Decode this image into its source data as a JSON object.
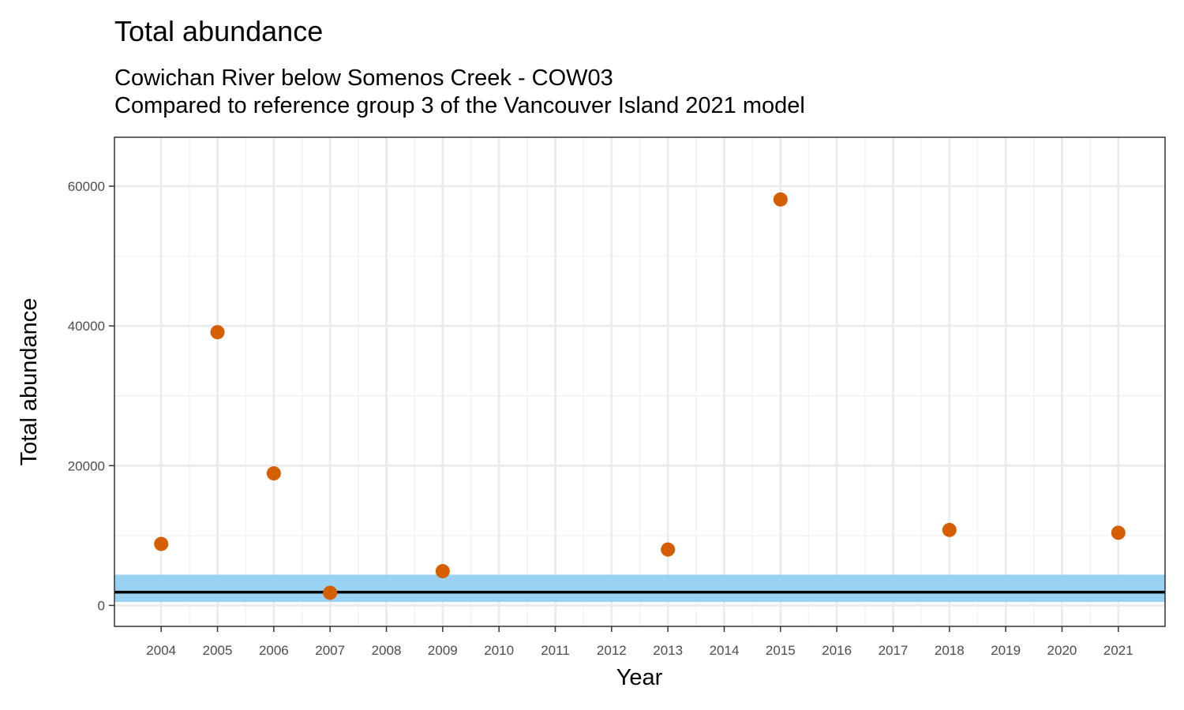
{
  "chart_data": {
    "type": "scatter",
    "title": "Total abundance",
    "subtitle": [
      "Cowichan River below Somenos Creek - COW03",
      "Compared to reference group 3 of the Vancouver Island 2021 model"
    ],
    "xlabel": "Year",
    "ylabel": "Total abundance",
    "x_ticks": [
      "2004",
      "2005",
      "2006",
      "2007",
      "2008",
      "2009",
      "2010",
      "2011",
      "2012",
      "2013",
      "2014",
      "2015",
      "2016",
      "2017",
      "2018",
      "2019",
      "2020",
      "2021"
    ],
    "y_ticks": [
      0,
      20000,
      40000,
      60000
    ],
    "xlim": [
      2003.17,
      2021.83
    ],
    "ylim": [
      -3000,
      67000
    ],
    "grid": true,
    "series": [
      {
        "points": [
          {
            "x": 2004,
            "y": 8800
          },
          {
            "x": 2005,
            "y": 39100
          },
          {
            "x": 2006,
            "y": 18900
          },
          {
            "x": 2007,
            "y": 1800
          },
          {
            "x": 2009,
            "y": 4900
          },
          {
            "x": 2013,
            "y": 8000
          },
          {
            "x": 2015,
            "y": 58100
          },
          {
            "x": 2018,
            "y": 10800
          },
          {
            "x": 2021,
            "y": 10400
          }
        ]
      }
    ],
    "reference_band": {
      "low": 500,
      "high": 4400
    },
    "reference_line": 1900,
    "colors": {
      "points": "#d55e00",
      "band": "#99d2f2",
      "line": "#000000",
      "grid_major": "#ebebeb",
      "grid_minor": "#f2f2f2",
      "panel_border": "#333333"
    }
  }
}
